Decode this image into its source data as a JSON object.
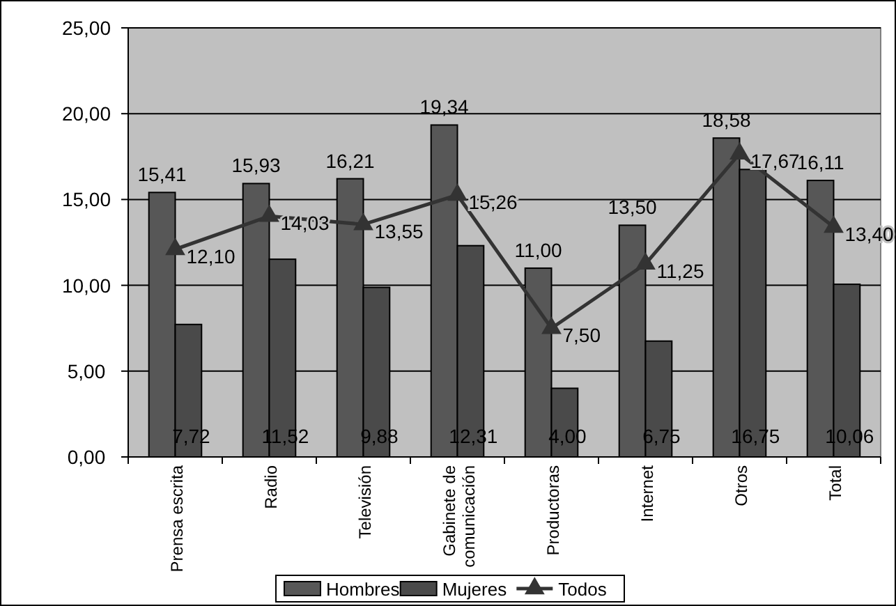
{
  "chart_data": {
    "type": "bar",
    "categories": [
      "Prensa escrita",
      "Radio",
      "Televisión",
      "Gabinete de comunicación",
      "Productoras",
      "Internet",
      "Otros",
      "Total"
    ],
    "series": [
      {
        "name": "Hombres",
        "color": "#575757",
        "values": [
          15.41,
          15.93,
          16.21,
          19.34,
          11.0,
          13.5,
          18.58,
          16.11
        ],
        "value_labels": [
          "15,41",
          "15,93",
          "16,21",
          "19,34",
          "11,00",
          "13,50",
          "18,58",
          "16,11"
        ]
      },
      {
        "name": "Mujeres",
        "color": "#4a4a4a",
        "values": [
          7.72,
          11.52,
          9.88,
          12.31,
          4.0,
          6.75,
          16.75,
          10.06
        ],
        "value_labels": [
          "7,72",
          "11,52",
          "9,88",
          "12,31",
          "4,00",
          "6,75",
          "16,75",
          "10,06"
        ]
      },
      {
        "name": "Todos",
        "type": "line",
        "color": "#333333",
        "marker": "triangle",
        "values": [
          12.1,
          14.03,
          13.55,
          15.26,
          7.5,
          11.25,
          17.67,
          13.4
        ],
        "value_labels": [
          "12,10",
          "14,03",
          "13,55",
          "15,26",
          "7,50",
          "11,25",
          "17,67",
          "13,40"
        ]
      }
    ],
    "ylim": [
      0,
      25
    ],
    "yticks": [
      {
        "value": 0,
        "label": "0,00"
      },
      {
        "value": 5,
        "label": "5,00"
      },
      {
        "value": 10,
        "label": "10,00"
      },
      {
        "value": 15,
        "label": "15,00"
      },
      {
        "value": 20,
        "label": "20,00"
      },
      {
        "value": 25,
        "label": "25,00"
      }
    ],
    "grid": "y",
    "legend": "bottom"
  }
}
